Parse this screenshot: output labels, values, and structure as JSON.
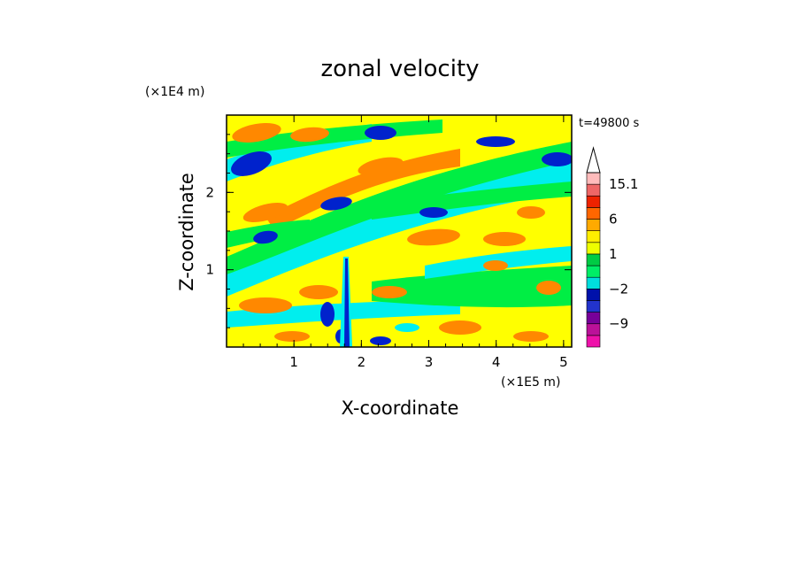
{
  "chart_data": {
    "type": "heatmap",
    "title": "zonal velocity",
    "xlabel": "X-coordinate",
    "ylabel": "Z-coordinate",
    "x_unit": "(×1E5 m)",
    "y_unit": "(×1E4 m)",
    "time_label": "t=49800 s",
    "xlim": [
      0,
      5.12
    ],
    "ylim": [
      0,
      3.0
    ],
    "x_ticks": [
      "1",
      "2",
      "3",
      "4",
      "5"
    ],
    "y_ticks": [
      "1",
      "2"
    ],
    "colorbar": {
      "tick_labels": [
        "15.1",
        "6",
        "1",
        "−2",
        "−9"
      ],
      "levels": [
        -15,
        -12,
        -9,
        -6,
        -3,
        -2,
        -1,
        0,
        1,
        2,
        3,
        6,
        9,
        12,
        15.1
      ],
      "colors": [
        "#ee11aa",
        "#bb1199",
        "#770099",
        "#2233cc",
        "#0011aa",
        "#00dddd",
        "#00ee66",
        "#00cc44",
        "#eeff00",
        "#ffee00",
        "#ffaa00",
        "#ff6600",
        "#ee2200",
        "#ee6666",
        "#ffbbbb"
      ]
    },
    "colors": {
      "blue": "#0022cc",
      "cyan": "#00eeee",
      "green": "#00ee44",
      "yellow": "#ffff00",
      "orange": "#ff8800"
    }
  }
}
